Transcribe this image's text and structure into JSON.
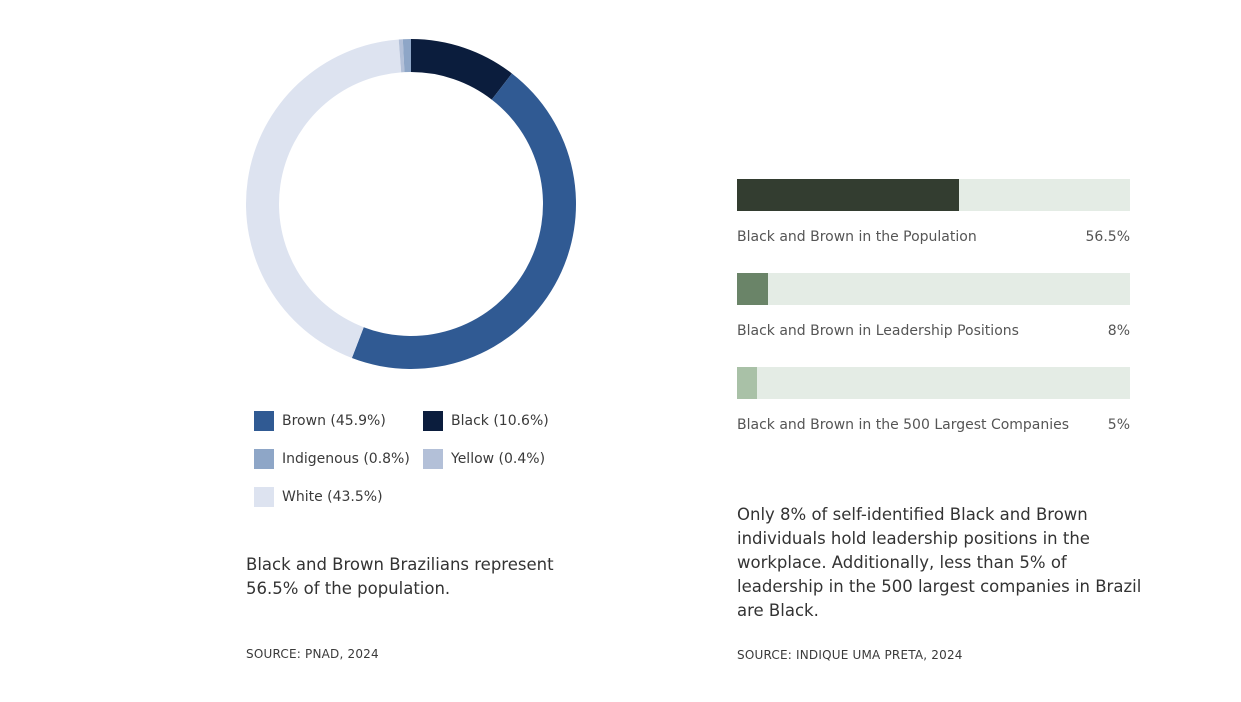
{
  "chart_data": [
    {
      "type": "donut",
      "slices": [
        {
          "label": "Black",
          "value": 10.6,
          "color": "#0b1d3d"
        },
        {
          "label": "Brown",
          "value": 45.9,
          "color": "#305a93"
        },
        {
          "label": "White",
          "value": 43.5,
          "color": "#dde3f0"
        },
        {
          "label": "Yellow",
          "value": 0.4,
          "color": "#b3c0d8"
        },
        {
          "label": "Indigenous",
          "value": 0.8,
          "color": "#8ea6c7"
        }
      ],
      "legend": [
        {
          "text": "Brown (45.9%)",
          "color": "#305a93"
        },
        {
          "text": "Black (10.6%)",
          "color": "#0b1d3d"
        },
        {
          "text": "Indigenous (0.8%)",
          "color": "#8ea6c7"
        },
        {
          "text": "Yellow (0.4%)",
          "color": "#b3c0d8"
        },
        {
          "text": "White (43.5%)",
          "color": "#dde3f0"
        }
      ],
      "caption": "Black and Brown Brazilians represent 56.5% of the population.",
      "source": "SOURCE: PNAD, 2024"
    },
    {
      "type": "bar",
      "orientation": "horizontal",
      "xlim": [
        0,
        100
      ],
      "track_color": "#e4ece5",
      "bars": [
        {
          "label": "Black and Brown in the Population",
          "value": 56.5,
          "display": "56.5%",
          "color": "#333d30"
        },
        {
          "label": "Black and Brown in Leadership Positions",
          "value": 8,
          "display": "8%",
          "color": "#6a8468"
        },
        {
          "label": "Black and Brown in the 500 Largest Companies",
          "value": 5,
          "display": "5%",
          "color": "#a9c1a7"
        }
      ],
      "caption": "Only 8% of self-identified Black and Brown individuals hold leadership positions in the workplace. Additionally, less than 5% of leadership in the 500 largest companies in Brazil are Black.",
      "source": "SOURCE: INDIQUE UMA PRETA, 2024"
    }
  ]
}
